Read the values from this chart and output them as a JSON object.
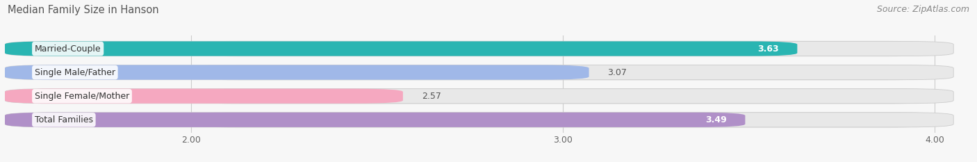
{
  "title": "Median Family Size in Hanson",
  "source": "Source: ZipAtlas.com",
  "categories": [
    "Married-Couple",
    "Single Male/Father",
    "Single Female/Mother",
    "Total Families"
  ],
  "values": [
    3.63,
    3.07,
    2.57,
    3.49
  ],
  "bar_colors": [
    "#2ab5b2",
    "#a0b8e8",
    "#f5a8c0",
    "#b090c8"
  ],
  "bar_bg_color": "#e8e8e8",
  "xlim_data": [
    2.0,
    4.0
  ],
  "x_axis_min": 2.0,
  "x_axis_max": 4.0,
  "xticks": [
    2.0,
    3.0,
    4.0
  ],
  "xtick_labels": [
    "2.00",
    "3.00",
    "4.00"
  ],
  "value_label_inside": [
    true,
    false,
    false,
    true
  ],
  "bar_height": 0.62,
  "background_color": "#f7f7f7",
  "title_fontsize": 10.5,
  "source_fontsize": 9,
  "label_fontsize": 9,
  "value_fontsize": 9,
  "title_color": "#555555",
  "source_color": "#888888",
  "value_color_inside": "#ffffff",
  "value_color_outside": "#555555",
  "cat_label_color": "#333333"
}
